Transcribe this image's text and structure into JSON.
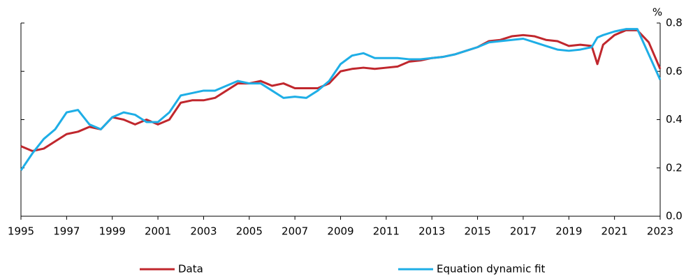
{
  "chart_data": {
    "type": "line",
    "y_label": "%",
    "x": [
      1995,
      1995.5,
      1996,
      1996.5,
      1997,
      1997.5,
      1998,
      1998.5,
      1999,
      1999.5,
      2000,
      2000.5,
      2001,
      2001.5,
      2002,
      2002.5,
      2003,
      2003.5,
      2004,
      2004.5,
      2005,
      2005.5,
      2006,
      2006.5,
      2007,
      2007.5,
      2008,
      2008.5,
      2009,
      2009.5,
      2010,
      2010.5,
      2011,
      2011.5,
      2012,
      2012.5,
      2013,
      2013.5,
      2014,
      2014.5,
      2015,
      2015.5,
      2016,
      2016.5,
      2017,
      2017.5,
      2018,
      2018.5,
      2019,
      2019.5,
      2020,
      2020.25,
      2020.5,
      2021,
      2021.5,
      2022,
      2022.5,
      2023
    ],
    "series": [
      {
        "name": "Data",
        "color": "#c0272d",
        "values": [
          0.29,
          0.27,
          0.28,
          0.31,
          0.34,
          0.35,
          0.37,
          0.36,
          0.41,
          0.4,
          0.38,
          0.4,
          0.38,
          0.4,
          0.47,
          0.48,
          0.48,
          0.49,
          0.52,
          0.55,
          0.55,
          0.56,
          0.54,
          0.55,
          0.53,
          0.53,
          0.53,
          0.55,
          0.6,
          0.61,
          0.615,
          0.61,
          0.615,
          0.62,
          0.64,
          0.645,
          0.655,
          0.66,
          0.67,
          0.685,
          0.7,
          0.725,
          0.73,
          0.745,
          0.75,
          0.745,
          0.73,
          0.725,
          0.705,
          0.71,
          0.705,
          0.63,
          0.71,
          0.75,
          0.77,
          0.77,
          0.72,
          0.61
        ]
      },
      {
        "name": "Equation dynamic fit",
        "color": "#1eaee6",
        "values": [
          0.19,
          0.26,
          0.32,
          0.36,
          0.43,
          0.44,
          0.38,
          0.36,
          0.41,
          0.43,
          0.42,
          0.39,
          0.39,
          0.43,
          0.5,
          0.51,
          0.52,
          0.52,
          0.54,
          0.56,
          0.55,
          0.55,
          0.52,
          0.49,
          0.495,
          0.49,
          0.52,
          0.56,
          0.63,
          0.665,
          0.675,
          0.655,
          0.655,
          0.655,
          0.65,
          0.65,
          0.655,
          0.66,
          0.67,
          0.685,
          0.7,
          0.72,
          0.725,
          0.73,
          0.735,
          0.72,
          0.705,
          0.69,
          0.685,
          0.69,
          0.7,
          0.74,
          0.75,
          0.765,
          0.775,
          0.775,
          0.67,
          0.565
        ]
      }
    ],
    "xlim": [
      1995,
      2023
    ],
    "xticks": [
      1995,
      1997,
      1999,
      2001,
      2003,
      2005,
      2007,
      2009,
      2011,
      2013,
      2015,
      2017,
      2019,
      2021,
      2023
    ],
    "ylim": [
      0,
      0.8
    ],
    "yticks": [
      {
        "value": 0,
        "label": "0.0"
      },
      0.2,
      0.4,
      0.6,
      0.8
    ],
    "legend": "bottom",
    "grid": false
  }
}
